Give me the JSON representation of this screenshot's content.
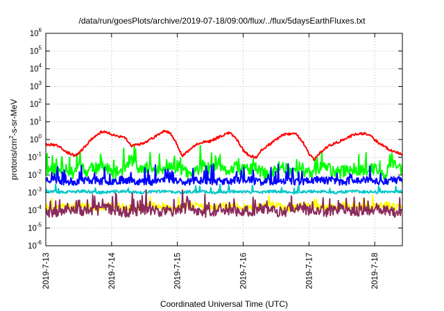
{
  "chart_data": {
    "type": "line",
    "title": "/data/run/goesPlots/archive/2019-07-18/09:00/flux/../flux/5daysEarthFluxes.txt",
    "xlabel": "Coordinated Universal Time (UTC)",
    "ylabel": {
      "prefix": "protons/cm",
      "superscript": "2",
      "suffix": "-s-sr-MeV"
    },
    "x_domain_days": [
      0,
      5.42
    ],
    "x_ticks": [
      {
        "label": "2019-7-13",
        "day": 0
      },
      {
        "label": "2019-7-14",
        "day": 1
      },
      {
        "label": "2019-7-15",
        "day": 2
      },
      {
        "label": "2019-7-16",
        "day": 3
      },
      {
        "label": "2019-7-17",
        "day": 4
      },
      {
        "label": "2019-7-18",
        "day": 5
      }
    ],
    "y_scale": "log",
    "ylim": [
      1e-06,
      1000000.0
    ],
    "y_ticks": [
      {
        "base": "10",
        "exp": "-6",
        "value": 1e-06
      },
      {
        "base": "10",
        "exp": "-5",
        "value": 1e-05
      },
      {
        "base": "10",
        "exp": "-4",
        "value": 0.0001
      },
      {
        "base": "10",
        "exp": "-3",
        "value": 0.001
      },
      {
        "base": "10",
        "exp": "-2",
        "value": 0.01
      },
      {
        "base": "10",
        "exp": "-1",
        "value": 0.1
      },
      {
        "base": "10",
        "exp": "0",
        "value": 1
      },
      {
        "base": "10",
        "exp": "1",
        "value": 10.0
      },
      {
        "base": "10",
        "exp": "2",
        "value": 100.0
      },
      {
        "base": "10",
        "exp": "3",
        "value": 1000.0
      },
      {
        "base": "10",
        "exp": "4",
        "value": 10000.0
      },
      {
        "base": "10",
        "exp": "5",
        "value": 100000.0
      },
      {
        "base": "10",
        "exp": "6",
        "value": 1000000.0
      }
    ],
    "grid": true,
    "series": [
      {
        "color": "#00ff00",
        "base": 0.015,
        "amp_dec": 0.12,
        "noise_dec": 0.35,
        "spike_prob": 0.12,
        "spike_dec": 0.6,
        "seed": 11,
        "points": [
          [
            0.0,
            0.015
          ],
          [
            0.1,
            0.02
          ],
          [
            0.2,
            0.012
          ],
          [
            0.3,
            0.03
          ],
          [
            0.4,
            0.015
          ],
          [
            0.5,
            0.05
          ],
          [
            0.6,
            0.012
          ],
          [
            0.7,
            0.025
          ],
          [
            0.8,
            0.015
          ],
          [
            0.9,
            0.03
          ],
          [
            1.0,
            0.015
          ],
          [
            1.15,
            0.02
          ],
          [
            1.3,
            0.06
          ],
          [
            1.4,
            0.015
          ],
          [
            1.5,
            0.02
          ],
          [
            1.6,
            0.03
          ],
          [
            1.8,
            0.015
          ],
          [
            2.0,
            0.025
          ],
          [
            2.2,
            0.012
          ],
          [
            2.35,
            0.03
          ],
          [
            2.5,
            0.015
          ],
          [
            2.7,
            0.02
          ],
          [
            2.9,
            0.03
          ],
          [
            3.0,
            0.015
          ],
          [
            3.2,
            0.02
          ],
          [
            3.4,
            0.012
          ],
          [
            3.55,
            0.03
          ],
          [
            3.7,
            0.015
          ],
          [
            3.9,
            0.02
          ],
          [
            4.0,
            0.015
          ],
          [
            4.2,
            0.025
          ],
          [
            4.4,
            0.012
          ],
          [
            4.6,
            0.03
          ],
          [
            4.8,
            0.015
          ],
          [
            5.0,
            0.02
          ],
          [
            5.15,
            0.015
          ],
          [
            5.25,
            0.05
          ],
          [
            5.35,
            0.03
          ],
          [
            5.42,
            0.015
          ]
        ]
      },
      {
        "color": "#0000ff",
        "base": 0.0045,
        "amp_dec": 0.05,
        "noise_dec": 0.22,
        "spike_prob": 0.08,
        "spike_dec": 0.55,
        "seed": 23,
        "points": [
          [
            0.0,
            0.005
          ],
          [
            0.5,
            0.0045
          ],
          [
            1.0,
            0.005
          ],
          [
            1.5,
            0.0045
          ],
          [
            2.0,
            0.005
          ],
          [
            2.5,
            0.0045
          ],
          [
            3.0,
            0.005
          ],
          [
            3.5,
            0.0045
          ],
          [
            4.0,
            0.005
          ],
          [
            4.5,
            0.0045
          ],
          [
            5.0,
            0.005
          ],
          [
            5.42,
            0.0045
          ]
        ]
      },
      {
        "color": "#00c8c8",
        "base": 0.0011,
        "amp_dec": 0.03,
        "noise_dec": 0.08,
        "spike_prob": 0.04,
        "spike_dec": 0.3,
        "seed": 37,
        "points": [
          [
            0.0,
            0.0011
          ],
          [
            1.0,
            0.0011
          ],
          [
            2.0,
            0.0011
          ],
          [
            3.0,
            0.0011
          ],
          [
            4.0,
            0.0011
          ],
          [
            5.0,
            0.0011
          ],
          [
            5.42,
            0.0011
          ]
        ]
      },
      {
        "color": "#ffff00",
        "base": 0.00016,
        "amp_dec": 0.08,
        "noise_dec": 0.2,
        "spike_prob": 0.06,
        "spike_dec": 0.35,
        "seed": 41,
        "points": [
          [
            0.0,
            0.00016
          ],
          [
            1.0,
            0.00016
          ],
          [
            2.0,
            0.00016
          ],
          [
            3.0,
            0.00016
          ],
          [
            4.0,
            0.00016
          ],
          [
            5.0,
            0.00016
          ],
          [
            5.42,
            0.00016
          ]
        ]
      },
      {
        "color": "#8b2a5c",
        "base": 0.0001,
        "amp_dec": 0.08,
        "noise_dec": 0.32,
        "spike_prob": 0.12,
        "spike_dec": 0.55,
        "seed": 53,
        "points": [
          [
            0.0,
            0.0001
          ],
          [
            1.0,
            0.0001
          ],
          [
            2.0,
            0.0001
          ],
          [
            3.0,
            0.0001
          ],
          [
            4.0,
            0.0001
          ],
          [
            5.0,
            0.0001
          ],
          [
            5.42,
            0.0001
          ]
        ]
      },
      {
        "color": "#ff0000",
        "base": 0,
        "amp_dec": 0,
        "noise_dec": 0.07,
        "spike_prob": 0,
        "spike_dec": 0,
        "seed": 67,
        "points": [
          [
            0.0,
            0.55
          ],
          [
            0.2,
            0.45
          ],
          [
            0.33,
            0.18
          ],
          [
            0.45,
            0.12
          ],
          [
            0.55,
            0.25
          ],
          [
            0.65,
            0.7
          ],
          [
            0.75,
            1.6
          ],
          [
            0.85,
            2.8
          ],
          [
            0.95,
            2.4
          ],
          [
            1.05,
            1.6
          ],
          [
            1.2,
            1.3
          ],
          [
            1.3,
            0.45
          ],
          [
            1.4,
            0.5
          ],
          [
            1.55,
            0.8
          ],
          [
            1.7,
            1.8
          ],
          [
            1.8,
            3.2
          ],
          [
            1.9,
            2.2
          ],
          [
            2.0,
            0.5
          ],
          [
            2.07,
            0.12
          ],
          [
            2.15,
            0.2
          ],
          [
            2.3,
            0.6
          ],
          [
            2.5,
            0.8
          ],
          [
            2.65,
            1.5
          ],
          [
            2.8,
            2.5
          ],
          [
            2.9,
            1.1
          ],
          [
            3.0,
            0.25
          ],
          [
            3.1,
            0.12
          ],
          [
            3.2,
            0.1
          ],
          [
            3.3,
            0.3
          ],
          [
            3.45,
            0.7
          ],
          [
            3.6,
            1.8
          ],
          [
            3.8,
            2.2
          ],
          [
            3.9,
            0.8
          ],
          [
            4.0,
            0.15
          ],
          [
            4.08,
            0.07
          ],
          [
            4.15,
            0.15
          ],
          [
            4.3,
            0.45
          ],
          [
            4.5,
            0.9
          ],
          [
            4.7,
            2.0
          ],
          [
            4.85,
            2.2
          ],
          [
            4.95,
            1.5
          ],
          [
            5.05,
            0.7
          ],
          [
            5.2,
            0.3
          ],
          [
            5.35,
            0.18
          ],
          [
            5.42,
            0.15
          ]
        ]
      }
    ]
  }
}
